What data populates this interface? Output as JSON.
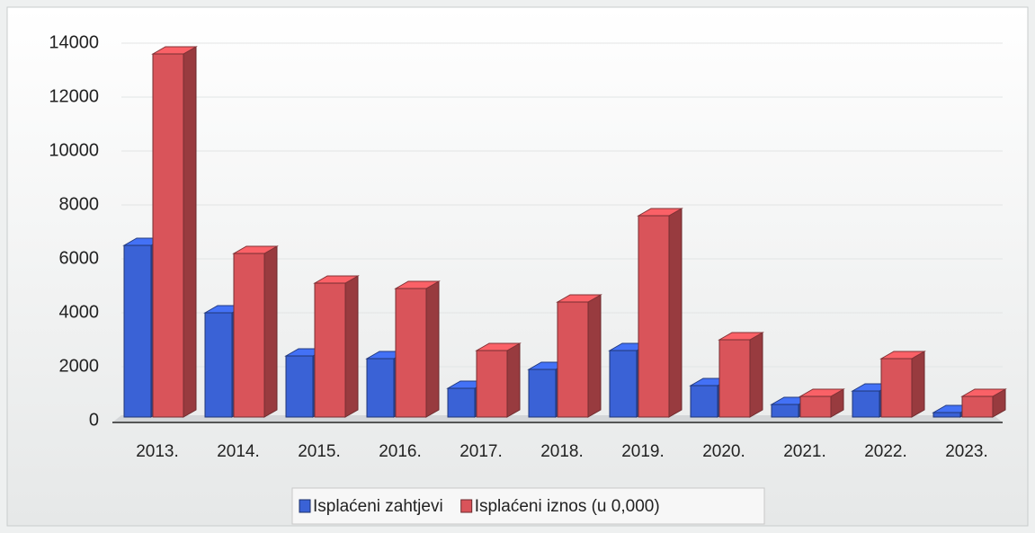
{
  "chart_data": {
    "type": "bar3d",
    "categories": [
      "2013.",
      "2014.",
      "2015.",
      "2016.",
      "2017.",
      "2018.",
      "2019.",
      "2020.",
      "2021.",
      "2022.",
      "2023."
    ],
    "series": [
      {
        "name": "Isplaćeni zahtjevi",
        "color": "#3a62d6",
        "values": [
          6500,
          4000,
          2400,
          2300,
          1200,
          1900,
          2600,
          1300,
          600,
          1100,
          300
        ]
      },
      {
        "name": "Isplaćeni iznos (u 0,000)",
        "color": "#d9545a",
        "values": [
          13600,
          6200,
          5100,
          4900,
          2600,
          4400,
          7600,
          3000,
          900,
          2300,
          900
        ]
      }
    ],
    "ylim": [
      0,
      14000
    ],
    "yticks": [
      0,
      2000,
      4000,
      6000,
      8000,
      10000,
      12000,
      14000
    ],
    "grid": true,
    "legend": "bottom"
  }
}
